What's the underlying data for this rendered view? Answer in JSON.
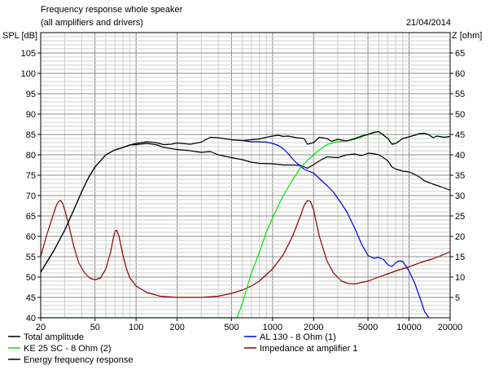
{
  "header": {
    "title": "Frequency response whole speaker",
    "subtitle": "(all amplifiers and drivers)",
    "date": "21/04/2014"
  },
  "colors": {
    "background": "#ffffff",
    "grid_major": "#8c8c8c",
    "grid_minor": "#cfcfcf",
    "total": "#000000",
    "al130": "#0000e6",
    "ke25": "#00e600",
    "impedance": "#8b0000",
    "energy": "#000000"
  },
  "chart_data": {
    "type": "line",
    "title": "Frequency response whole speaker",
    "ylabel": "SPL [dB]",
    "y2label": "Z [ohm]",
    "xscale": "log",
    "xlim": [
      20,
      20000
    ],
    "ylim": [
      40,
      110
    ],
    "y2lim": [
      0,
      70
    ],
    "grid": true,
    "legend_position": "bottom",
    "x_ticks": [
      {
        "v": 20,
        "label": "20"
      },
      {
        "v": 50,
        "label": "50"
      },
      {
        "v": 100,
        "label": "100"
      },
      {
        "v": 200,
        "label": "200"
      },
      {
        "v": 500,
        "label": "500"
      },
      {
        "v": 1000,
        "label": "1000"
      },
      {
        "v": 2000,
        "label": "2000"
      },
      {
        "v": 5000,
        "label": "5000"
      },
      {
        "v": 10000,
        "label": "10000"
      },
      {
        "v": 20000,
        "label": "20000"
      }
    ],
    "y_ticks": [
      {
        "v": 40,
        "label": "40"
      },
      {
        "v": 45,
        "label": "45"
      },
      {
        "v": 50,
        "label": "50"
      },
      {
        "v": 55,
        "label": "55"
      },
      {
        "v": 60,
        "label": "60"
      },
      {
        "v": 65,
        "label": "65"
      },
      {
        "v": 70,
        "label": "70"
      },
      {
        "v": 75,
        "label": "75"
      },
      {
        "v": 80,
        "label": "80"
      },
      {
        "v": 85,
        "label": "85"
      },
      {
        "v": 90,
        "label": "90"
      },
      {
        "v": 95,
        "label": "95"
      },
      {
        "v": 100,
        "label": "100"
      },
      {
        "v": 105,
        "label": "105"
      }
    ],
    "y2_ticks": [
      {
        "v": 5,
        "label": "5"
      },
      {
        "v": 10,
        "label": "10"
      },
      {
        "v": 15,
        "label": "15"
      },
      {
        "v": 20,
        "label": "20"
      },
      {
        "v": 25,
        "label": "25"
      },
      {
        "v": 30,
        "label": "30"
      },
      {
        "v": 35,
        "label": "35"
      },
      {
        "v": 40,
        "label": "40"
      },
      {
        "v": 45,
        "label": "45"
      },
      {
        "v": 50,
        "label": "50"
      },
      {
        "v": 55,
        "label": "55"
      },
      {
        "v": 60,
        "label": "60"
      },
      {
        "v": 65,
        "label": "65"
      }
    ],
    "series": [
      {
        "name": "Total amplitude",
        "color": "#000000",
        "axis": "left",
        "points": [
          [
            20,
            51.2
          ],
          [
            25,
            56.5
          ],
          [
            30,
            61.5
          ],
          [
            35,
            66.5
          ],
          [
            40,
            71
          ],
          [
            45,
            74.5
          ],
          [
            50,
            77
          ],
          [
            60,
            80
          ],
          [
            70,
            81.2
          ],
          [
            80,
            81.8
          ],
          [
            90,
            82.4
          ],
          [
            100,
            82.8
          ],
          [
            120,
            83.2
          ],
          [
            140,
            83
          ],
          [
            160,
            82.5
          ],
          [
            180,
            82.6
          ],
          [
            200,
            82.9
          ],
          [
            250,
            82.6
          ],
          [
            300,
            83.1
          ],
          [
            350,
            84.3
          ],
          [
            400,
            84.2
          ],
          [
            500,
            83.7
          ],
          [
            600,
            83.5
          ],
          [
            700,
            83.7
          ],
          [
            800,
            83.9
          ],
          [
            900,
            84.3
          ],
          [
            1000,
            84.6
          ],
          [
            1100,
            84.8
          ],
          [
            1200,
            84.5
          ],
          [
            1300,
            84.6
          ],
          [
            1500,
            84.2
          ],
          [
            1700,
            84
          ],
          [
            1800,
            82.6
          ],
          [
            2000,
            83
          ],
          [
            2200,
            84.3
          ],
          [
            2500,
            84
          ],
          [
            2700,
            83.3
          ],
          [
            3000,
            83.8
          ],
          [
            3500,
            83.4
          ],
          [
            4000,
            84
          ],
          [
            4500,
            84.6
          ],
          [
            5000,
            85
          ],
          [
            5500,
            85.5
          ],
          [
            6000,
            85.7
          ],
          [
            6500,
            84.8
          ],
          [
            7000,
            84
          ],
          [
            7500,
            82.6
          ],
          [
            8000,
            82.8
          ],
          [
            9000,
            84
          ],
          [
            10000,
            84.4
          ],
          [
            11000,
            84.8
          ],
          [
            12000,
            85.2
          ],
          [
            13000,
            85.3
          ],
          [
            14000,
            84.9
          ],
          [
            15000,
            84.2
          ],
          [
            16000,
            84.6
          ],
          [
            18000,
            84.3
          ],
          [
            20000,
            84.5
          ]
        ]
      },
      {
        "name": "AL 130 - 8 Ohm (1)",
        "color": "#0000e6",
        "axis": "left",
        "points": [
          [
            500,
            83.7
          ],
          [
            600,
            83.5
          ],
          [
            700,
            83.2
          ],
          [
            800,
            83.2
          ],
          [
            900,
            83.1
          ],
          [
            1000,
            82.8
          ],
          [
            1100,
            82.3
          ],
          [
            1200,
            81.5
          ],
          [
            1300,
            80.3
          ],
          [
            1400,
            79
          ],
          [
            1500,
            78
          ],
          [
            1700,
            76.5
          ],
          [
            2000,
            75.5
          ],
          [
            2300,
            73.6
          ],
          [
            2500,
            72.5
          ],
          [
            2800,
            70.8
          ],
          [
            3200,
            68
          ],
          [
            3500,
            66
          ],
          [
            4000,
            62
          ],
          [
            4500,
            58
          ],
          [
            5000,
            55.3
          ],
          [
            5500,
            54.6
          ],
          [
            6000,
            54.8
          ],
          [
            6500,
            54.3
          ],
          [
            7000,
            53
          ],
          [
            7500,
            52.6
          ],
          [
            8000,
            53.5
          ],
          [
            8500,
            54
          ],
          [
            9000,
            53.8
          ],
          [
            10000,
            51.5
          ],
          [
            11000,
            48.5
          ],
          [
            12000,
            45
          ],
          [
            13000,
            41.5
          ],
          [
            14000,
            40
          ]
        ]
      },
      {
        "name": "KE 25 SC - 8 Ohm   (2)",
        "color": "#00e600",
        "axis": "left",
        "points": [
          [
            20,
            40
          ],
          [
            450,
            40
          ],
          [
            550,
            40
          ],
          [
            600,
            43.5
          ],
          [
            650,
            47.5
          ],
          [
            700,
            51
          ],
          [
            800,
            56
          ],
          [
            900,
            61
          ],
          [
            1000,
            64.5
          ],
          [
            1100,
            67.5
          ],
          [
            1200,
            70
          ],
          [
            1400,
            73.8
          ],
          [
            1600,
            76.8
          ],
          [
            1800,
            78.6
          ],
          [
            2000,
            80
          ],
          [
            2200,
            81.2
          ],
          [
            2500,
            82.5
          ],
          [
            2800,
            83
          ],
          [
            3000,
            83.2
          ],
          [
            3500,
            83.4
          ],
          [
            4000,
            83.8
          ],
          [
            4500,
            84.4
          ],
          [
            5000,
            85
          ],
          [
            5500,
            85.4
          ],
          [
            6000,
            85.7
          ],
          [
            6500,
            84.8
          ],
          [
            7000,
            84
          ],
          [
            7500,
            82.6
          ],
          [
            8000,
            82.8
          ],
          [
            9000,
            84
          ],
          [
            10000,
            84.4
          ],
          [
            11000,
            84.8
          ],
          [
            12000,
            85.2
          ],
          [
            13000,
            85.3
          ],
          [
            14000,
            84.9
          ],
          [
            15000,
            84.2
          ],
          [
            16000,
            84.6
          ],
          [
            18000,
            84.3
          ],
          [
            20000,
            84.5
          ]
        ]
      },
      {
        "name": "Impedance at amplifier 1",
        "color": "#8b0000",
        "axis": "right",
        "points": [
          [
            20,
            15
          ],
          [
            22,
            20
          ],
          [
            24,
            24
          ],
          [
            26,
            27.5
          ],
          [
            27,
            28.5
          ],
          [
            28,
            28.8
          ],
          [
            29,
            28
          ],
          [
            30,
            26.5
          ],
          [
            32,
            23
          ],
          [
            35,
            17.5
          ],
          [
            38,
            13.5
          ],
          [
            42,
            11
          ],
          [
            46,
            9.7
          ],
          [
            50,
            9.3
          ],
          [
            55,
            9.8
          ],
          [
            60,
            12
          ],
          [
            65,
            16
          ],
          [
            68,
            19.5
          ],
          [
            70,
            21.2
          ],
          [
            72,
            21.5
          ],
          [
            75,
            20
          ],
          [
            80,
            15.5
          ],
          [
            85,
            12
          ],
          [
            90,
            9.8
          ],
          [
            100,
            7.8
          ],
          [
            120,
            6.2
          ],
          [
            150,
            5.3
          ],
          [
            200,
            5
          ],
          [
            300,
            5
          ],
          [
            400,
            5.3
          ],
          [
            500,
            6
          ],
          [
            600,
            6.8
          ],
          [
            700,
            7.8
          ],
          [
            800,
            9
          ],
          [
            1000,
            12
          ],
          [
            1200,
            15.5
          ],
          [
            1400,
            20
          ],
          [
            1600,
            25
          ],
          [
            1700,
            27.5
          ],
          [
            1800,
            28.8
          ],
          [
            1900,
            28.5
          ],
          [
            2000,
            26.5
          ],
          [
            2200,
            20
          ],
          [
            2500,
            14
          ],
          [
            2800,
            11
          ],
          [
            3200,
            9
          ],
          [
            3600,
            8.4
          ],
          [
            4000,
            8.3
          ],
          [
            5000,
            9
          ],
          [
            6000,
            10
          ],
          [
            7000,
            10.8
          ],
          [
            8000,
            11.5
          ],
          [
            10000,
            12.5
          ],
          [
            12000,
            13.5
          ],
          [
            15000,
            14.5
          ],
          [
            17000,
            15.2
          ],
          [
            20000,
            16.2
          ]
        ]
      },
      {
        "name": "Energy frequency response",
        "color": "#000000",
        "axis": "left",
        "points": [
          [
            20,
            51.2
          ],
          [
            25,
            56.5
          ],
          [
            30,
            61.5
          ],
          [
            35,
            66.5
          ],
          [
            40,
            71
          ],
          [
            45,
            74.5
          ],
          [
            50,
            77
          ],
          [
            60,
            80
          ],
          [
            70,
            81.2
          ],
          [
            80,
            81.8
          ],
          [
            90,
            82.4
          ],
          [
            100,
            82.5
          ],
          [
            120,
            82.8
          ],
          [
            140,
            82.5
          ],
          [
            160,
            81.8
          ],
          [
            200,
            81.3
          ],
          [
            250,
            81
          ],
          [
            300,
            80.6
          ],
          [
            350,
            80.8
          ],
          [
            400,
            80
          ],
          [
            500,
            79.3
          ],
          [
            600,
            78.8
          ],
          [
            700,
            78.2
          ],
          [
            800,
            77.9
          ],
          [
            1000,
            77.8
          ],
          [
            1200,
            77.5
          ],
          [
            1400,
            77.5
          ],
          [
            1600,
            77.4
          ],
          [
            1800,
            76.7
          ],
          [
            2000,
            77.6
          ],
          [
            2200,
            78.5
          ],
          [
            2500,
            79.5
          ],
          [
            3000,
            79.3
          ],
          [
            3500,
            80
          ],
          [
            4000,
            80.2
          ],
          [
            4500,
            79.8
          ],
          [
            5000,
            80.4
          ],
          [
            5500,
            80.3
          ],
          [
            6000,
            80
          ],
          [
            6500,
            79.3
          ],
          [
            7000,
            78.5
          ],
          [
            7500,
            77
          ],
          [
            8000,
            76.5
          ],
          [
            9000,
            76
          ],
          [
            10000,
            75.8
          ],
          [
            11000,
            75.2
          ],
          [
            12000,
            74.5
          ],
          [
            13000,
            73.6
          ],
          [
            14000,
            73.2
          ],
          [
            15000,
            72.8
          ],
          [
            17000,
            72.2
          ],
          [
            20000,
            71.3
          ]
        ]
      }
    ]
  }
}
